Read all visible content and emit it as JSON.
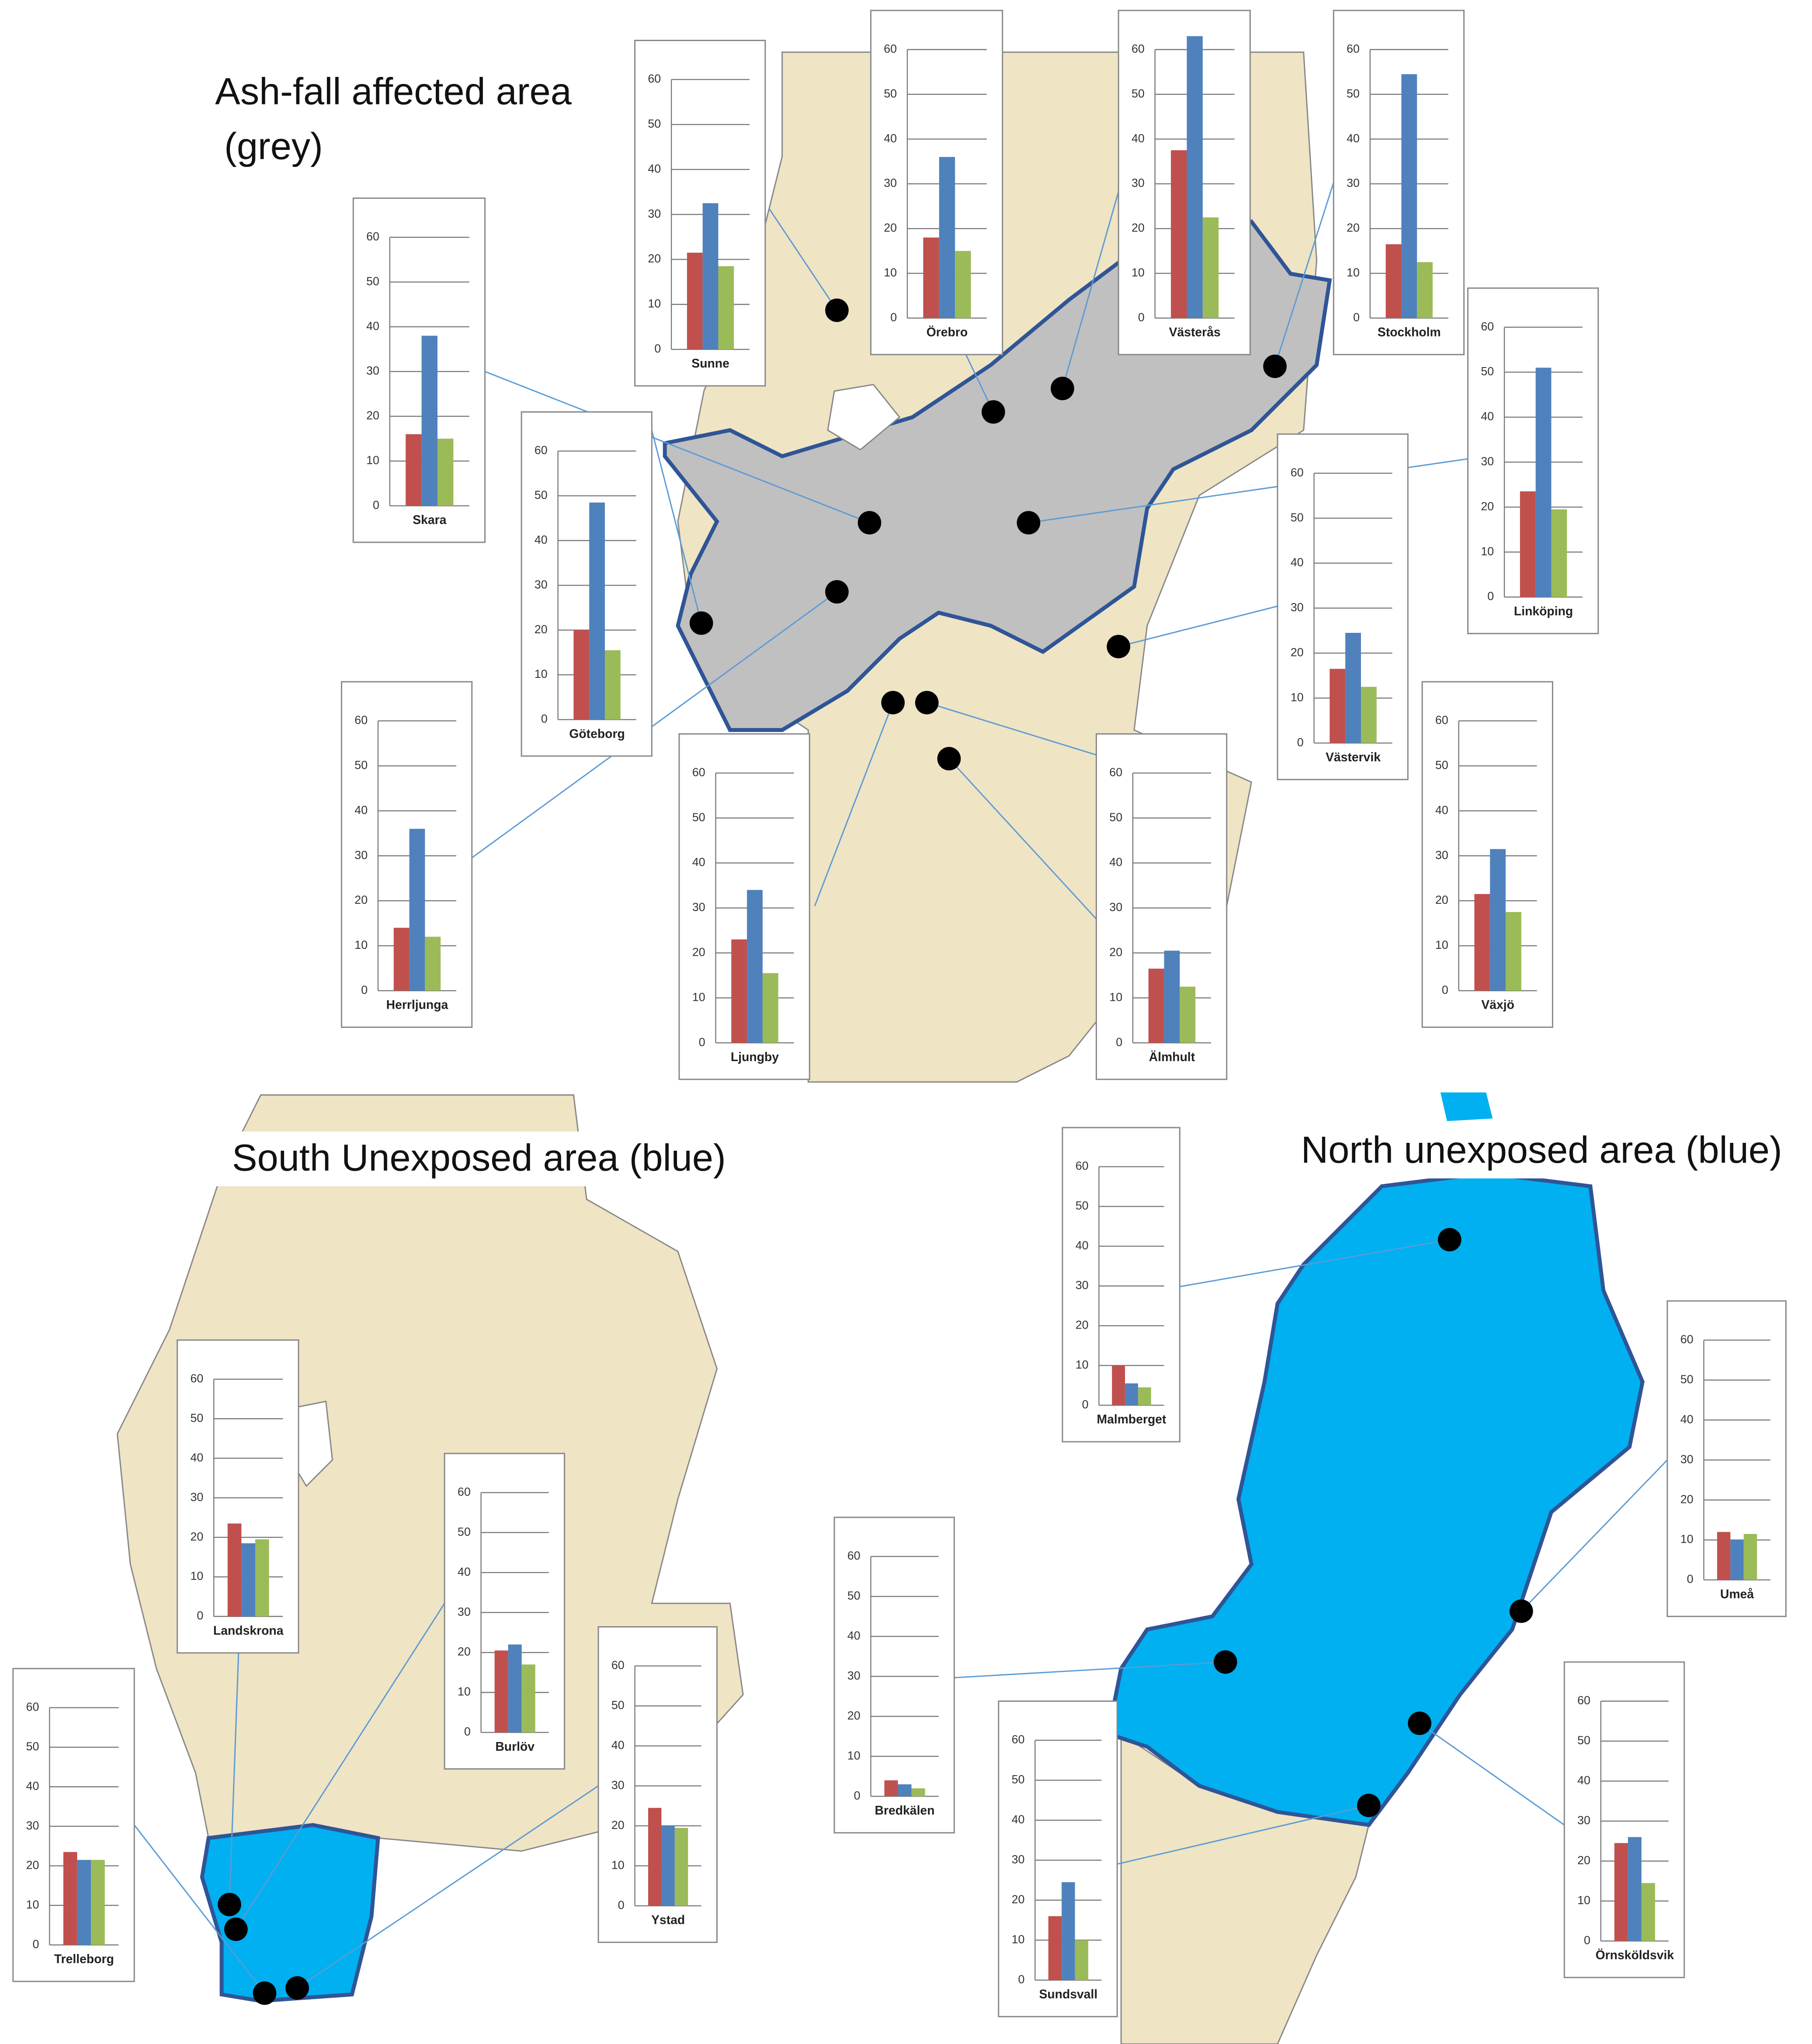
{
  "annotations": {
    "ash_fall": [
      "Ash-fall affected area",
      "(grey)"
    ],
    "south": "South Unexposed area (blue)",
    "north": "North unexposed area (blue)"
  },
  "chart_data": [
    {
      "type": "bar",
      "xlabel": "Skara",
      "values": [
        16,
        38,
        15
      ],
      "colors": [
        "#c0504d",
        "#4f81bd",
        "#9bbb59"
      ],
      "ylim": [
        0,
        60
      ],
      "yticks": [
        0,
        10,
        20,
        30,
        40,
        50,
        60
      ]
    },
    {
      "type": "bar",
      "xlabel": "Sunne",
      "values": [
        21.5,
        32.5,
        18.5
      ],
      "colors": [
        "#c0504d",
        "#4f81bd",
        "#9bbb59"
      ],
      "ylim": [
        0,
        60
      ],
      "yticks": [
        0,
        10,
        20,
        30,
        40,
        50,
        60
      ]
    },
    {
      "type": "bar",
      "xlabel": "Örebro",
      "values": [
        18,
        36,
        15
      ],
      "colors": [
        "#c0504d",
        "#4f81bd",
        "#9bbb59"
      ],
      "ylim": [
        0,
        60
      ],
      "yticks": [
        0,
        10,
        20,
        30,
        40,
        50,
        60
      ]
    },
    {
      "type": "bar",
      "xlabel": "Västerås",
      "values": [
        37.5,
        63,
        22.5
      ],
      "colors": [
        "#c0504d",
        "#4f81bd",
        "#9bbb59"
      ],
      "ylim": [
        0,
        60
      ],
      "yticks": [
        0,
        10,
        20,
        30,
        40,
        50,
        60
      ]
    },
    {
      "type": "bar",
      "xlabel": "Stockholm",
      "values": [
        16.5,
        54.5,
        12.5
      ],
      "colors": [
        "#c0504d",
        "#4f81bd",
        "#9bbb59"
      ],
      "ylim": [
        0,
        60
      ],
      "yticks": [
        0,
        10,
        20,
        30,
        40,
        50,
        60
      ]
    },
    {
      "type": "bar",
      "xlabel": "Linköping",
      "values": [
        23.5,
        51,
        19.5
      ],
      "colors": [
        "#c0504d",
        "#4f81bd",
        "#9bbb59"
      ],
      "ylim": [
        0,
        60
      ],
      "yticks": [
        0,
        10,
        20,
        30,
        40,
        50,
        60
      ]
    },
    {
      "type": "bar",
      "xlabel": "Göteborg",
      "values": [
        20,
        48.5,
        15.5
      ],
      "colors": [
        "#c0504d",
        "#4f81bd",
        "#9bbb59"
      ],
      "ylim": [
        0,
        60
      ],
      "yticks": [
        0,
        10,
        20,
        30,
        40,
        50,
        60
      ]
    },
    {
      "type": "bar",
      "xlabel": "Västervik",
      "values": [
        16.5,
        24.5,
        12.5
      ],
      "colors": [
        "#c0504d",
        "#4f81bd",
        "#9bbb59"
      ],
      "ylim": [
        0,
        60
      ],
      "yticks": [
        0,
        10,
        20,
        30,
        40,
        50,
        60
      ]
    },
    {
      "type": "bar",
      "xlabel": "Herrljunga",
      "values": [
        14,
        36,
        12
      ],
      "colors": [
        "#c0504d",
        "#4f81bd",
        "#9bbb59"
      ],
      "ylim": [
        0,
        60
      ],
      "yticks": [
        0,
        10,
        20,
        30,
        40,
        50,
        60
      ]
    },
    {
      "type": "bar",
      "xlabel": "Ljungby",
      "values": [
        23,
        34,
        15.5
      ],
      "colors": [
        "#c0504d",
        "#4f81bd",
        "#9bbb59"
      ],
      "ylim": [
        0,
        60
      ],
      "yticks": [
        0,
        10,
        20,
        30,
        40,
        50,
        60
      ]
    },
    {
      "type": "bar",
      "xlabel": "Älmhult",
      "values": [
        16.5,
        20.5,
        12.5
      ],
      "colors": [
        "#c0504d",
        "#4f81bd",
        "#9bbb59"
      ],
      "ylim": [
        0,
        60
      ],
      "yticks": [
        0,
        10,
        20,
        30,
        40,
        50,
        60
      ]
    },
    {
      "type": "bar",
      "xlabel": "Växjö",
      "values": [
        21.5,
        31.5,
        17.5
      ],
      "colors": [
        "#c0504d",
        "#4f81bd",
        "#9bbb59"
      ],
      "ylim": [
        0,
        60
      ],
      "yticks": [
        0,
        10,
        20,
        30,
        40,
        50,
        60
      ]
    },
    {
      "type": "bar",
      "xlabel": "Landskrona",
      "values": [
        23.5,
        18.5,
        19.5
      ],
      "colors": [
        "#c0504d",
        "#4f81bd",
        "#9bbb59"
      ],
      "ylim": [
        0,
        60
      ],
      "yticks": [
        0,
        10,
        20,
        30,
        40,
        50,
        60
      ]
    },
    {
      "type": "bar",
      "xlabel": "Burlöv",
      "values": [
        20.5,
        22,
        17
      ],
      "colors": [
        "#c0504d",
        "#4f81bd",
        "#9bbb59"
      ],
      "ylim": [
        0,
        60
      ],
      "yticks": [
        0,
        10,
        20,
        30,
        40,
        50,
        60
      ]
    },
    {
      "type": "bar",
      "xlabel": "Trelleborg",
      "values": [
        23.5,
        21.5,
        21.5
      ],
      "colors": [
        "#c0504d",
        "#4f81bd",
        "#9bbb59"
      ],
      "ylim": [
        0,
        60
      ],
      "yticks": [
        0,
        10,
        20,
        30,
        40,
        50,
        60
      ]
    },
    {
      "type": "bar",
      "xlabel": "Ystad",
      "values": [
        24.5,
        20,
        19.5
      ],
      "colors": [
        "#c0504d",
        "#4f81bd",
        "#9bbb59"
      ],
      "ylim": [
        0,
        60
      ],
      "yticks": [
        0,
        10,
        20,
        30,
        40,
        50,
        60
      ]
    },
    {
      "type": "bar",
      "xlabel": "Malmberget",
      "values": [
        10,
        5.5,
        4.5
      ],
      "colors": [
        "#c0504d",
        "#4f81bd",
        "#9bbb59"
      ],
      "ylim": [
        0,
        60
      ],
      "yticks": [
        0,
        10,
        20,
        30,
        40,
        50,
        60
      ]
    },
    {
      "type": "bar",
      "xlabel": "Umeå",
      "values": [
        12,
        10,
        11.5
      ],
      "colors": [
        "#c0504d",
        "#4f81bd",
        "#9bbb59"
      ],
      "ylim": [
        0,
        60
      ],
      "yticks": [
        0,
        10,
        20,
        30,
        40,
        50,
        60
      ]
    },
    {
      "type": "bar",
      "xlabel": "Bredkälen",
      "values": [
        4,
        3,
        2
      ],
      "colors": [
        "#c0504d",
        "#4f81bd",
        "#9bbb59"
      ],
      "ylim": [
        0,
        60
      ],
      "yticks": [
        0,
        10,
        20,
        30,
        40,
        50,
        60
      ]
    },
    {
      "type": "bar",
      "xlabel": "Örnsköldsvik",
      "values": [
        24.5,
        26,
        14.5
      ],
      "colors": [
        "#c0504d",
        "#4f81bd",
        "#9bbb59"
      ],
      "ylim": [
        0,
        60
      ],
      "yticks": [
        0,
        10,
        20,
        30,
        40,
        50,
        60
      ]
    },
    {
      "type": "bar",
      "xlabel": "Sundsvall",
      "values": [
        16,
        24.5,
        10
      ],
      "colors": [
        "#c0504d",
        "#4f81bd",
        "#9bbb59"
      ],
      "ylim": [
        0,
        60
      ],
      "yticks": [
        0,
        10,
        20,
        30,
        40,
        50,
        60
      ]
    }
  ]
}
